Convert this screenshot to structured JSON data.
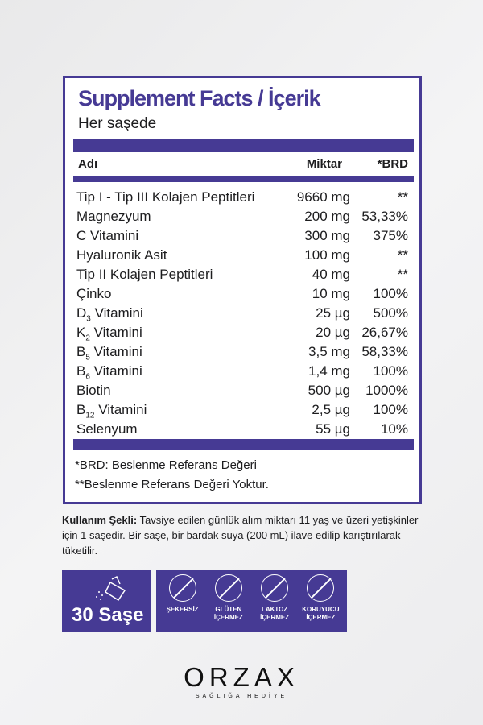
{
  "facts": {
    "title": "Supplement Facts / İçerik",
    "subtitle": "Her saşede",
    "headers": {
      "name": "Adı",
      "amount": "Miktar",
      "brd": "*BRD"
    },
    "rows": [
      {
        "name": "Tip I - Tip III Kolajen Peptitleri",
        "sub": "",
        "rest": "",
        "amount": "9660 mg",
        "brd": "**"
      },
      {
        "name": "Magnezyum",
        "sub": "",
        "rest": "",
        "amount": "200 mg",
        "brd": "53,33%"
      },
      {
        "name": "C Vitamini",
        "sub": "",
        "rest": "",
        "amount": "300 mg",
        "brd": "375%"
      },
      {
        "name": "Hyaluronik Asit",
        "sub": "",
        "rest": "",
        "amount": "100 mg",
        "brd": "**"
      },
      {
        "name": "Tip II Kolajen Peptitleri",
        "sub": "",
        "rest": "",
        "amount": "40 mg",
        "brd": "**"
      },
      {
        "name": "Çinko",
        "sub": "",
        "rest": "",
        "amount": "10 mg",
        "brd": "100%"
      },
      {
        "name": "D",
        "sub": "3",
        "rest": " Vitamini",
        "amount": "25 µg",
        "brd": "500%"
      },
      {
        "name": "K",
        "sub": "2",
        "rest": " Vitamini",
        "amount": "20 µg",
        "brd": "26,67%"
      },
      {
        "name": "B",
        "sub": "5",
        "rest": " Vitamini",
        "amount": "3,5 mg",
        "brd": "58,33%"
      },
      {
        "name": "B",
        "sub": "6",
        "rest": " Vitamini",
        "amount": "1,4 mg",
        "brd": "100%"
      },
      {
        "name": "Biotin",
        "sub": "",
        "rest": "",
        "amount": "500 µg",
        "brd": "1000%"
      },
      {
        "name": "B",
        "sub": "12",
        "rest": " Vitamini",
        "amount": "2,5 µg",
        "brd": "100%"
      },
      {
        "name": "Selenyum",
        "sub": "",
        "rest": "",
        "amount": "55 µg",
        "brd": "10%"
      }
    ],
    "footnote1": "*BRD: Beslenme Referans Değeri",
    "footnote2": "**Beslenme Referans Değeri Yoktur."
  },
  "usage": {
    "label": "Kullanım Şekli:",
    "text": " Tavsiye edilen günlük alım miktarı 11 yaş ve üzeri yetişkinler için 1 saşedir. Bir saşe, bir bardak suya (200 mL) ilave edilip karıştırılarak tüketilir."
  },
  "badges": {
    "count": "30 Saşe",
    "items": [
      {
        "icon": "sugar-cubes-icon",
        "l1": "ŞEKERSİZ",
        "l2": ""
      },
      {
        "icon": "wheat-icon",
        "l1": "GLÜTEN",
        "l2": "İÇERMEZ"
      },
      {
        "icon": "milk-bottle-icon",
        "l1": "LAKTOZ",
        "l2": "İÇERMEZ"
      },
      {
        "icon": "flask-icon",
        "l1": "KORUYUCU",
        "l2": "İÇERMEZ"
      }
    ]
  },
  "brand": {
    "name": "ORZAX",
    "tagline": "SAĞLIĞA HEDİYE"
  },
  "colors": {
    "accent": "#463a94"
  }
}
